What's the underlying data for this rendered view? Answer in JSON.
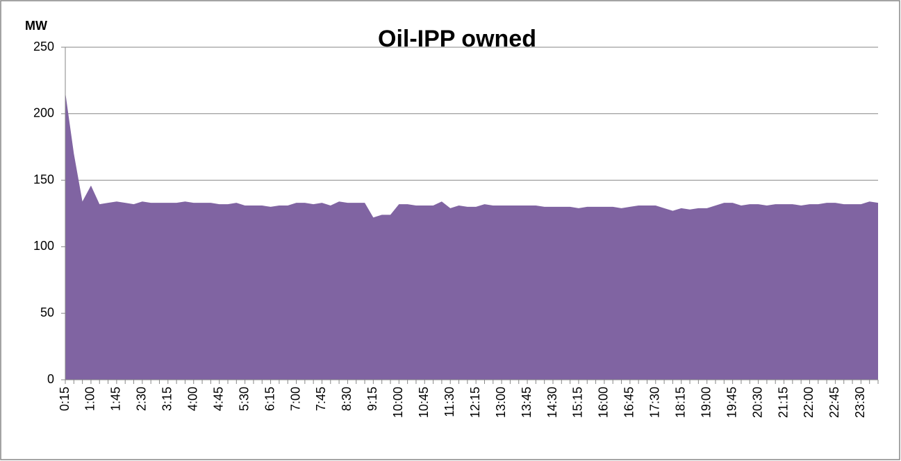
{
  "chart_data": {
    "type": "area",
    "title": "Oil-IPP owned",
    "y_label": "MW",
    "categories": [
      "0:15",
      null,
      null,
      "1:00",
      null,
      null,
      "1:45",
      null,
      null,
      "2:30",
      null,
      null,
      "3:15",
      null,
      null,
      "4:00",
      null,
      null,
      "4:45",
      null,
      null,
      "5:30",
      null,
      null,
      "6:15",
      null,
      null,
      "7:00",
      null,
      null,
      "7:45",
      null,
      null,
      "8:30",
      null,
      null,
      "9:15",
      null,
      null,
      "10:00",
      null,
      null,
      "10:45",
      null,
      null,
      "11:30",
      null,
      null,
      "12:15",
      null,
      null,
      "13:00",
      null,
      null,
      "13:45",
      null,
      null,
      "14:30",
      null,
      null,
      "15:15",
      null,
      null,
      "16:00",
      null,
      null,
      "16:45",
      null,
      null,
      "17:30",
      null,
      null,
      "18:15",
      null,
      null,
      "19:00",
      null,
      null,
      "19:45",
      null,
      null,
      "20:30",
      null,
      null,
      "21:15",
      null,
      null,
      "22:00",
      null,
      null,
      "22:45",
      null,
      null,
      "23:30",
      null,
      null
    ],
    "series": [
      {
        "color": "#8064a2",
        "values": [
          216,
          170,
          134,
          146,
          132,
          133,
          134,
          133,
          132,
          134,
          133,
          133,
          133,
          133,
          134,
          133,
          133,
          133,
          132,
          132,
          133,
          131,
          131,
          131,
          130,
          131,
          131,
          133,
          133,
          132,
          133,
          131,
          134,
          133,
          133,
          133,
          122,
          124,
          124,
          132,
          132,
          131,
          131,
          131,
          134,
          129,
          131,
          130,
          130,
          132,
          131,
          131,
          131,
          131,
          131,
          131,
          130,
          130,
          130,
          130,
          129,
          130,
          130,
          130,
          130,
          129,
          130,
          131,
          131,
          131,
          129,
          127,
          129,
          128,
          129,
          129,
          131,
          133,
          133,
          131,
          132,
          132,
          131,
          132,
          132,
          132,
          131,
          132,
          132,
          133,
          133,
          132,
          132,
          132,
          134,
          133
        ]
      }
    ],
    "ylim": [
      0,
      250
    ],
    "yticks": [
      0,
      50,
      100,
      150,
      200,
      250
    ],
    "grid": true
  }
}
